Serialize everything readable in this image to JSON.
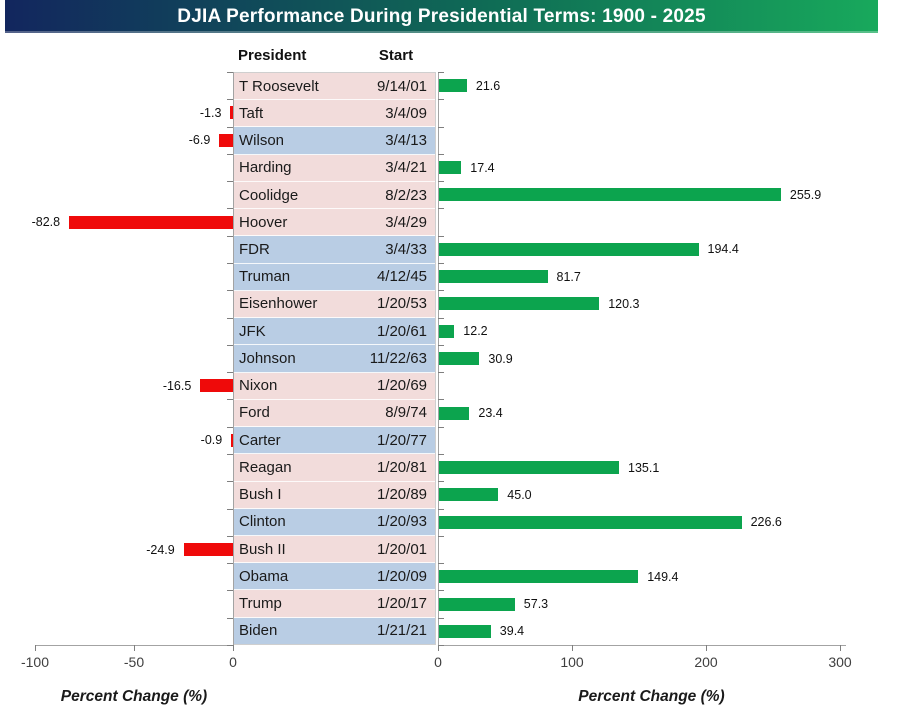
{
  "title": "DJIA Performance During Presidential Terms: 1900 - 2025",
  "table": {
    "headers": {
      "president": "President",
      "start": "Start"
    }
  },
  "axes": {
    "left_label": "Percent Change (%)",
    "right_label": "Percent Change (%)",
    "left_ticks": [
      {
        "value": -100,
        "label": "-100"
      },
      {
        "value": -50,
        "label": "-50"
      },
      {
        "value": 0,
        "label": "0"
      }
    ],
    "right_ticks": [
      {
        "value": 0,
        "label": "0"
      },
      {
        "value": 100,
        "label": "100"
      },
      {
        "value": 200,
        "label": "200"
      },
      {
        "value": 300,
        "label": "300"
      }
    ]
  },
  "colors": {
    "title_gradient_start": "#12265e",
    "title_gradient_end": "#18a95c",
    "positive_bar": "#0ca44e",
    "negative_bar": "#ef0a0a",
    "republican_row": "#f2dcdb",
    "democrat_row": "#b9cde4",
    "axis_line": "#a3a3a3"
  },
  "chart_data": {
    "type": "bar",
    "orientation": "horizontal",
    "title": "DJIA Performance During Presidential Terms: 1900 - 2025",
    "xlabel": "Percent Change (%)",
    "negative_axis_range": [
      -100,
      0
    ],
    "positive_axis_range": [
      0,
      300
    ],
    "categories": [
      "T Roosevelt",
      "Taft",
      "Wilson",
      "Harding",
      "Coolidge",
      "Hoover",
      "FDR",
      "Truman",
      "Eisenhower",
      "JFK",
      "Johnson",
      "Nixon",
      "Ford",
      "Carter",
      "Reagan",
      "Bush I",
      "Clinton",
      "Bush II",
      "Obama",
      "Trump",
      "Biden"
    ],
    "start_dates": [
      "9/14/01",
      "3/4/09",
      "3/4/13",
      "3/4/21",
      "8/2/23",
      "3/4/29",
      "3/4/33",
      "4/12/45",
      "1/20/53",
      "1/20/61",
      "11/22/63",
      "1/20/69",
      "8/9/74",
      "1/20/77",
      "1/20/81",
      "1/20/89",
      "1/20/93",
      "1/20/01",
      "1/20/09",
      "1/20/17",
      "1/21/21"
    ],
    "values": [
      21.6,
      -1.3,
      -6.9,
      17.4,
      255.9,
      -82.8,
      194.4,
      81.7,
      120.3,
      12.2,
      30.9,
      -16.5,
      23.4,
      -0.9,
      135.1,
      45.0,
      226.6,
      -24.9,
      149.4,
      57.3,
      39.4
    ]
  },
  "rows": [
    {
      "president": "T Roosevelt",
      "start": "9/14/01",
      "value": 21.6,
      "label": "21.6",
      "party": "R"
    },
    {
      "president": "Taft",
      "start": "3/4/09",
      "value": -1.3,
      "label": "-1.3",
      "party": "R"
    },
    {
      "president": "Wilson",
      "start": "3/4/13",
      "value": -6.9,
      "label": "-6.9",
      "party": "D"
    },
    {
      "president": "Harding",
      "start": "3/4/21",
      "value": 17.4,
      "label": "17.4",
      "party": "R"
    },
    {
      "president": "Coolidge",
      "start": "8/2/23",
      "value": 255.9,
      "label": "255.9",
      "party": "R"
    },
    {
      "president": "Hoover",
      "start": "3/4/29",
      "value": -82.8,
      "label": "-82.8",
      "party": "R"
    },
    {
      "president": "FDR",
      "start": "3/4/33",
      "value": 194.4,
      "label": "194.4",
      "party": "D"
    },
    {
      "president": "Truman",
      "start": "4/12/45",
      "value": 81.7,
      "label": "81.7",
      "party": "D"
    },
    {
      "president": "Eisenhower",
      "start": "1/20/53",
      "value": 120.3,
      "label": "120.3",
      "party": "R"
    },
    {
      "president": "JFK",
      "start": "1/20/61",
      "value": 12.2,
      "label": "12.2",
      "party": "D"
    },
    {
      "president": "Johnson",
      "start": "11/22/63",
      "value": 30.9,
      "label": "30.9",
      "party": "D"
    },
    {
      "president": "Nixon",
      "start": "1/20/69",
      "value": -16.5,
      "label": "-16.5",
      "party": "R"
    },
    {
      "president": "Ford",
      "start": "8/9/74",
      "value": 23.4,
      "label": "23.4",
      "party": "R"
    },
    {
      "president": "Carter",
      "start": "1/20/77",
      "value": -0.9,
      "label": "-0.9",
      "party": "D"
    },
    {
      "president": "Reagan",
      "start": "1/20/81",
      "value": 135.1,
      "label": "135.1",
      "party": "R"
    },
    {
      "president": "Bush I",
      "start": "1/20/89",
      "value": 45.0,
      "label": "45.0",
      "party": "R"
    },
    {
      "president": "Clinton",
      "start": "1/20/93",
      "value": 226.6,
      "label": "226.6",
      "party": "D"
    },
    {
      "president": "Bush II",
      "start": "1/20/01",
      "value": -24.9,
      "label": "-24.9",
      "party": "R"
    },
    {
      "president": "Obama",
      "start": "1/20/09",
      "value": 149.4,
      "label": "149.4",
      "party": "D"
    },
    {
      "president": "Trump",
      "start": "1/20/17",
      "value": 57.3,
      "label": "57.3",
      "party": "R"
    },
    {
      "president": "Biden",
      "start": "1/21/21",
      "value": 39.4,
      "label": "39.4",
      "party": "D"
    }
  ]
}
